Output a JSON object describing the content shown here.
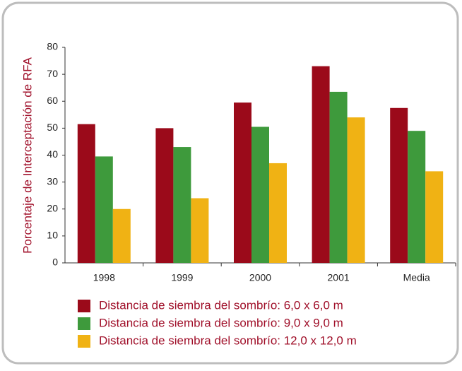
{
  "chart_data": {
    "type": "bar",
    "y_label": "Porcentaje de Interceptación de RFA",
    "categories": [
      "1998",
      "1999",
      "2000",
      "2001",
      "Media"
    ],
    "series": [
      {
        "name": "Distancia de siembra del sombrío: 6,0 x 6,0 m",
        "color": "#9b0a1a",
        "values": [
          51.5,
          50,
          59.5,
          73,
          57.5
        ]
      },
      {
        "name": "Distancia de siembra del sombrío: 9,0 x 9,0 m",
        "color": "#3e9a3c",
        "values": [
          39.5,
          43,
          50.5,
          63.5,
          49
        ]
      },
      {
        "name": "Distancia de siembra del sombrío: 12,0 x 12,0 m",
        "color": "#f0b214",
        "values": [
          20,
          24,
          37,
          54,
          34
        ]
      }
    ],
    "ylim": [
      0,
      80
    ],
    "yticks": [
      0,
      10,
      20,
      30,
      40,
      50,
      60,
      70,
      80
    ],
    "grid": false
  }
}
